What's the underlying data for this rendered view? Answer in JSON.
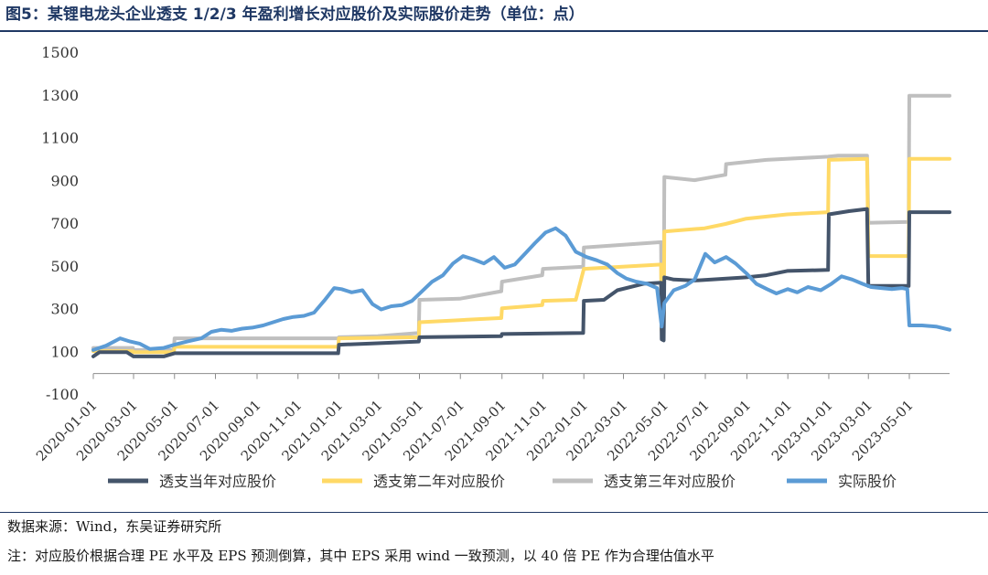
{
  "figure": {
    "title": "图5：某锂电龙头企业透支 1/2/3 年盈利增长对应股价及实际股价走势（单位：点）",
    "source": "数据来源：Wind，东吴证券研究所",
    "note": "注：对应股价根据合理 PE 水平及 EPS 预测倒算，其中 EPS 采用 wind 一致预测，以 40 倍 PE 作为合理估值水平"
  },
  "chart_data": {
    "type": "line",
    "title": "图5：某锂电龙头企业透支 1/2/3 年盈利增长对应股价及实际股价走势（单位：点）",
    "xlabel": "",
    "ylabel": "",
    "ylim": [
      -100,
      1500
    ],
    "yticks": [
      -100,
      100,
      300,
      500,
      700,
      900,
      1100,
      1300,
      1500
    ],
    "xlim": [
      "2020-01-01",
      "2023-06-30"
    ],
    "xticks": [
      "2020-01-01",
      "2020-03-01",
      "2020-05-01",
      "2020-07-01",
      "2020-09-01",
      "2020-11-01",
      "2021-01-01",
      "2021-03-01",
      "2021-05-01",
      "2021-07-01",
      "2021-09-01",
      "2021-11-01",
      "2022-01-01",
      "2022-03-01",
      "2022-05-01",
      "2022-07-01",
      "2022-09-01",
      "2022-11-01",
      "2023-01-01",
      "2023-03-01",
      "2023-05-01"
    ],
    "grid": false,
    "legend_position": "bottom",
    "series": [
      {
        "name": "透支当年对应股价",
        "color": "#44546a",
        "points": [
          [
            "2020-01-01",
            80
          ],
          [
            "2020-01-10",
            100
          ],
          [
            "2020-02-20",
            100
          ],
          [
            "2020-03-01",
            80
          ],
          [
            "2020-04-15",
            80
          ],
          [
            "2020-05-01",
            95
          ],
          [
            "2020-06-30",
            95
          ],
          [
            "2020-12-31",
            95
          ],
          [
            "2021-01-01",
            135
          ],
          [
            "2021-02-15",
            140
          ],
          [
            "2021-04-30",
            150
          ],
          [
            "2021-05-01",
            170
          ],
          [
            "2021-08-31",
            175
          ],
          [
            "2021-09-01",
            185
          ],
          [
            "2021-12-31",
            190
          ],
          [
            "2022-01-01",
            340
          ],
          [
            "2022-01-31",
            345
          ],
          [
            "2022-02-20",
            390
          ],
          [
            "2022-03-31",
            420
          ],
          [
            "2022-04-26",
            425
          ],
          [
            "2022-04-27",
            160
          ],
          [
            "2022-04-30",
            155
          ],
          [
            "2022-05-01",
            450
          ],
          [
            "2022-05-15",
            440
          ],
          [
            "2022-06-15",
            435
          ],
          [
            "2022-08-31",
            450
          ],
          [
            "2022-09-30",
            460
          ],
          [
            "2022-10-31",
            480
          ],
          [
            "2022-12-31",
            485
          ],
          [
            "2023-01-01",
            745
          ],
          [
            "2023-01-31",
            760
          ],
          [
            "2023-02-27",
            770
          ],
          [
            "2023-03-01",
            410
          ],
          [
            "2023-04-30",
            410
          ],
          [
            "2023-05-01",
            755
          ],
          [
            "2023-06-30",
            755
          ]
        ]
      },
      {
        "name": "透支第二年对应股价",
        "color": "#ffd966",
        "points": [
          [
            "2020-01-01",
            105
          ],
          [
            "2020-02-29",
            105
          ],
          [
            "2020-03-01",
            100
          ],
          [
            "2020-04-30",
            100
          ],
          [
            "2020-05-01",
            125
          ],
          [
            "2020-12-31",
            125
          ],
          [
            "2021-01-01",
            165
          ],
          [
            "2021-04-30",
            170
          ],
          [
            "2021-05-01",
            240
          ],
          [
            "2021-06-30",
            250
          ],
          [
            "2021-08-31",
            260
          ],
          [
            "2021-09-01",
            305
          ],
          [
            "2021-10-31",
            320
          ],
          [
            "2021-11-01",
            340
          ],
          [
            "2021-12-20",
            345
          ],
          [
            "2022-01-01",
            490
          ],
          [
            "2022-04-26",
            510
          ],
          [
            "2022-04-27",
            200
          ],
          [
            "2022-04-30",
            200
          ],
          [
            "2022-05-01",
            665
          ],
          [
            "2022-06-30",
            680
          ],
          [
            "2022-07-31",
            700
          ],
          [
            "2022-08-31",
            725
          ],
          [
            "2022-10-31",
            745
          ],
          [
            "2022-12-31",
            755
          ],
          [
            "2023-01-01",
            1000
          ],
          [
            "2023-02-27",
            1005
          ],
          [
            "2023-03-01",
            550
          ],
          [
            "2023-04-30",
            550
          ],
          [
            "2023-05-01",
            1005
          ],
          [
            "2023-06-30",
            1005
          ]
        ]
      },
      {
        "name": "透支第三年对应股价",
        "color": "#bfbfbf",
        "points": [
          [
            "2020-01-01",
            120
          ],
          [
            "2020-02-29",
            120
          ],
          [
            "2020-03-01",
            110
          ],
          [
            "2020-04-30",
            110
          ],
          [
            "2020-05-01",
            165
          ],
          [
            "2020-12-31",
            165
          ],
          [
            "2021-01-01",
            170
          ],
          [
            "2021-02-28",
            175
          ],
          [
            "2021-04-30",
            190
          ],
          [
            "2021-05-01",
            345
          ],
          [
            "2021-06-30",
            350
          ],
          [
            "2021-08-31",
            385
          ],
          [
            "2021-09-01",
            430
          ],
          [
            "2021-10-31",
            460
          ],
          [
            "2021-11-01",
            490
          ],
          [
            "2021-12-31",
            500
          ],
          [
            "2022-01-01",
            590
          ],
          [
            "2022-04-26",
            615
          ],
          [
            "2022-04-27",
            250
          ],
          [
            "2022-04-30",
            250
          ],
          [
            "2022-05-01",
            920
          ],
          [
            "2022-06-15",
            905
          ],
          [
            "2022-07-31",
            930
          ],
          [
            "2022-08-01",
            980
          ],
          [
            "2022-09-30",
            1000
          ],
          [
            "2022-12-31",
            1015
          ],
          [
            "2023-01-15",
            1020
          ],
          [
            "2023-02-27",
            1020
          ],
          [
            "2023-03-01",
            705
          ],
          [
            "2023-04-30",
            710
          ],
          [
            "2023-05-01",
            1300
          ],
          [
            "2023-06-30",
            1300
          ]
        ]
      },
      {
        "name": "实际股价",
        "color": "#5b9bd5",
        "points": [
          [
            "2020-01-01",
            110
          ],
          [
            "2020-01-20",
            130
          ],
          [
            "2020-02-10",
            165
          ],
          [
            "2020-02-25",
            150
          ],
          [
            "2020-03-10",
            140
          ],
          [
            "2020-03-25",
            115
          ],
          [
            "2020-04-15",
            120
          ],
          [
            "2020-05-01",
            135
          ],
          [
            "2020-05-20",
            150
          ],
          [
            "2020-06-10",
            165
          ],
          [
            "2020-06-25",
            195
          ],
          [
            "2020-07-10",
            205
          ],
          [
            "2020-07-25",
            200
          ],
          [
            "2020-08-10",
            210
          ],
          [
            "2020-08-25",
            215
          ],
          [
            "2020-09-10",
            225
          ],
          [
            "2020-09-25",
            240
          ],
          [
            "2020-10-10",
            255
          ],
          [
            "2020-10-25",
            265
          ],
          [
            "2020-11-10",
            270
          ],
          [
            "2020-11-25",
            285
          ],
          [
            "2020-12-10",
            340
          ],
          [
            "2020-12-25",
            400
          ],
          [
            "2021-01-05",
            395
          ],
          [
            "2021-01-20",
            380
          ],
          [
            "2021-02-05",
            390
          ],
          [
            "2021-02-20",
            325
          ],
          [
            "2021-03-05",
            300
          ],
          [
            "2021-03-20",
            315
          ],
          [
            "2021-04-05",
            320
          ],
          [
            "2021-04-20",
            340
          ],
          [
            "2021-05-05",
            385
          ],
          [
            "2021-05-20",
            430
          ],
          [
            "2021-06-05",
            460
          ],
          [
            "2021-06-20",
            515
          ],
          [
            "2021-07-05",
            550
          ],
          [
            "2021-07-20",
            535
          ],
          [
            "2021-08-05",
            515
          ],
          [
            "2021-08-20",
            545
          ],
          [
            "2021-09-05",
            495
          ],
          [
            "2021-09-20",
            510
          ],
          [
            "2021-10-05",
            560
          ],
          [
            "2021-10-20",
            610
          ],
          [
            "2021-11-05",
            660
          ],
          [
            "2021-11-20",
            680
          ],
          [
            "2021-12-05",
            645
          ],
          [
            "2021-12-20",
            570
          ],
          [
            "2022-01-05",
            545
          ],
          [
            "2022-01-20",
            530
          ],
          [
            "2022-02-05",
            510
          ],
          [
            "2022-02-20",
            470
          ],
          [
            "2022-03-05",
            445
          ],
          [
            "2022-03-20",
            430
          ],
          [
            "2022-04-05",
            420
          ],
          [
            "2022-04-20",
            400
          ],
          [
            "2022-04-27",
            220
          ],
          [
            "2022-05-01",
            330
          ],
          [
            "2022-05-15",
            390
          ],
          [
            "2022-06-01",
            410
          ],
          [
            "2022-06-15",
            440
          ],
          [
            "2022-07-01",
            560
          ],
          [
            "2022-07-15",
            520
          ],
          [
            "2022-08-01",
            545
          ],
          [
            "2022-08-15",
            515
          ],
          [
            "2022-08-31",
            470
          ],
          [
            "2022-09-15",
            420
          ],
          [
            "2022-10-01",
            395
          ],
          [
            "2022-10-15",
            375
          ],
          [
            "2022-11-01",
            395
          ],
          [
            "2022-11-15",
            380
          ],
          [
            "2022-12-01",
            405
          ],
          [
            "2022-12-20",
            390
          ],
          [
            "2023-01-05",
            420
          ],
          [
            "2023-01-20",
            455
          ],
          [
            "2023-02-05",
            440
          ],
          [
            "2023-02-20",
            420
          ],
          [
            "2023-03-05",
            405
          ],
          [
            "2023-03-20",
            400
          ],
          [
            "2023-04-05",
            395
          ],
          [
            "2023-04-20",
            400
          ],
          [
            "2023-04-28",
            395
          ],
          [
            "2023-05-01",
            225
          ],
          [
            "2023-05-20",
            225
          ],
          [
            "2023-06-10",
            220
          ],
          [
            "2023-06-30",
            205
          ]
        ]
      }
    ]
  }
}
